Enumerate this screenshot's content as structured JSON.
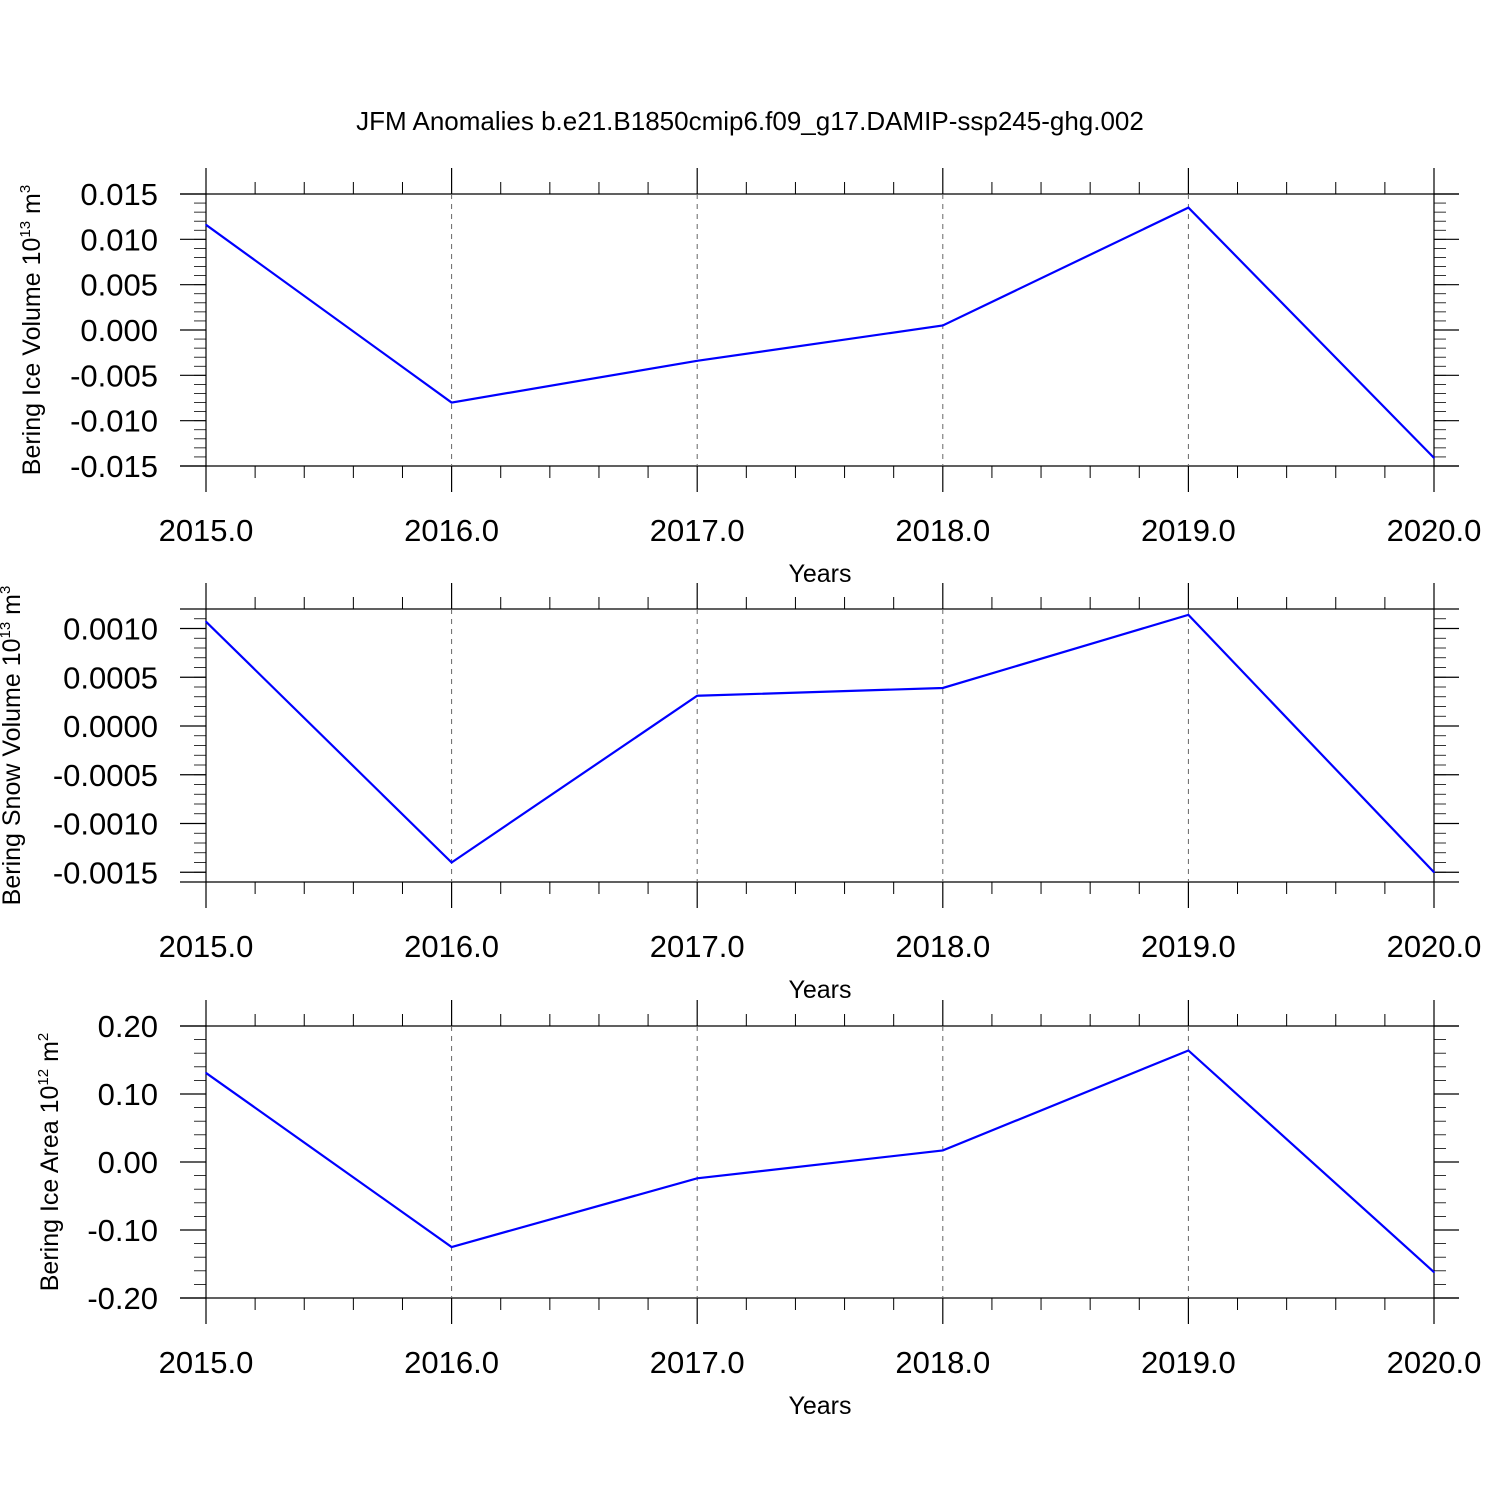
{
  "title": "JFM Anomalies b.e21.B1850cmip6.f09_g17.DAMIP-ssp245-ghg.002",
  "colors": {
    "series": "#0000ff",
    "axes": "#000000",
    "grid": "#666666"
  },
  "chart_data": [
    {
      "type": "line",
      "x": [
        2015,
        2016,
        2017,
        2018,
        2019,
        2020
      ],
      "x_tick_labels": [
        "2015.0",
        "2016.0",
        "2017.0",
        "2018.0",
        "2019.0",
        "2020.0"
      ],
      "xlabel": "Years",
      "ylabel_main": "Bering Ice Volume 10",
      "ylabel_sup": "13",
      "ylabel_unit": " m",
      "ylabel_unit_sup": "3",
      "ylim": [
        -0.015,
        0.015
      ],
      "y_ticks": [
        0.015,
        0.01,
        0.005,
        0.0,
        -0.005,
        -0.01,
        -0.015
      ],
      "y_tick_labels": [
        "0.015",
        "0.010",
        "0.005",
        "0.000",
        "-0.005",
        "-0.010",
        "-0.015"
      ],
      "series": [
        {
          "values": [
            0.0116,
            -0.008,
            -0.0034,
            0.0005,
            0.0135,
            -0.0141
          ]
        }
      ],
      "grid": "vertical dashed at major x ticks"
    },
    {
      "type": "line",
      "x": [
        2015,
        2016,
        2017,
        2018,
        2019,
        2020
      ],
      "x_tick_labels": [
        "2015.0",
        "2016.0",
        "2017.0",
        "2018.0",
        "2019.0",
        "2020.0"
      ],
      "xlabel": "Years",
      "ylabel_main": "Bering Snow Volume 10",
      "ylabel_sup": "13",
      "ylabel_unit": " m",
      "ylabel_unit_sup": "3",
      "ylim": [
        -0.0016,
        0.0012
      ],
      "y_ticks": [
        0.001,
        0.0005,
        0.0,
        -0.0005,
        -0.001,
        -0.0015
      ],
      "y_tick_labels": [
        "0.0010",
        "0.0005",
        "0.0000",
        "-0.0005",
        "-0.0010",
        "-0.0015"
      ],
      "series": [
        {
          "values": [
            0.00107,
            -0.0014,
            0.00031,
            0.00039,
            0.00114,
            -0.0015
          ]
        }
      ],
      "grid": "vertical dashed at major x ticks"
    },
    {
      "type": "line",
      "x": [
        2015,
        2016,
        2017,
        2018,
        2019,
        2020
      ],
      "x_tick_labels": [
        "2015.0",
        "2016.0",
        "2017.0",
        "2018.0",
        "2019.0",
        "2020.0"
      ],
      "xlabel": "Years",
      "ylabel_main": "Bering Ice Area 10",
      "ylabel_sup": "12",
      "ylabel_unit": " m",
      "ylabel_unit_sup": "2",
      "ylim": [
        -0.2,
        0.2
      ],
      "y_ticks": [
        0.2,
        0.1,
        0.0,
        -0.1,
        -0.2
      ],
      "y_tick_labels": [
        "0.20",
        "0.10",
        "0.00",
        "-0.10",
        "-0.20"
      ],
      "series": [
        {
          "values": [
            0.131,
            -0.125,
            -0.024,
            0.017,
            0.164,
            -0.162
          ]
        }
      ],
      "grid": "vertical dashed at major x ticks"
    }
  ]
}
